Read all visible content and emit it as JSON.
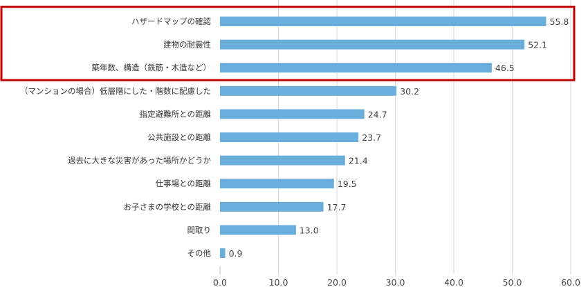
{
  "chart_data": {
    "type": "bar",
    "orientation": "horizontal",
    "categories": [
      "ハザードマップの確認",
      "建物の耐震性",
      "築年数、構造（鉄筋・木造など）",
      "（マンションの場合）低層階にした・階数に配慮した",
      "指定避難所との距離",
      "公共施設との距離",
      "過去に大きな災害があった場所かどうか",
      "仕事場との距離",
      "お子さまの学校との距離",
      "間取り",
      "その他"
    ],
    "values": [
      55.8,
      52.1,
      46.5,
      30.2,
      24.7,
      23.7,
      21.4,
      19.5,
      17.7,
      13.0,
      0.9
    ],
    "value_labels": [
      "55.8",
      "52.1",
      "46.5",
      "30.2",
      "24.7",
      "23.7",
      "21.4",
      "19.5",
      "17.7",
      "13.0",
      "0.9"
    ],
    "xlim": [
      0,
      60
    ],
    "ticks": [
      "0.0",
      "10.0",
      "20.0",
      "30.0",
      "40.0",
      "50.0",
      "60.0"
    ],
    "grid": "vertical",
    "bar_color": "#6aaedb",
    "highlight": {
      "categories": [
        0,
        1,
        2
      ],
      "color": "#c00000"
    },
    "title": "",
    "xlabel": "",
    "ylabel": ""
  }
}
